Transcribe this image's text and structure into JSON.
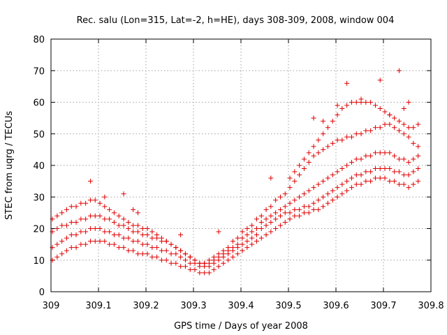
{
  "chart_data": {
    "type": "scatter",
    "title": "Rec. salu (Lon=315, Lat=-2, h=HE), days 308-309, 2008, window 004",
    "xlabel": "GPS time / Days of year 2008",
    "ylabel": "STEC from uqrg / TECUs",
    "xlim": [
      309,
      309.8
    ],
    "ylim": [
      0,
      80
    ],
    "xticks": [
      "309",
      "309.1",
      "309.2",
      "309.3",
      "309.4",
      "309.5",
      "309.6",
      "309.7",
      "309.8"
    ],
    "yticks": [
      "0",
      "10",
      "20",
      "30",
      "40",
      "50",
      "60",
      "70",
      "80"
    ],
    "grid": true,
    "marker": "+",
    "color": "#e00000",
    "series": [
      {
        "name": "track-1",
        "x": [
          309.003,
          309.013,
          309.023,
          309.033,
          309.043,
          309.053,
          309.063,
          309.073,
          309.083,
          309.093,
          309.103,
          309.113,
          309.123,
          309.133,
          309.143,
          309.153,
          309.163,
          309.173,
          309.183,
          309.193,
          309.203,
          309.213,
          309.223,
          309.233,
          309.243,
          309.253,
          309.263,
          309.273,
          309.283,
          309.293,
          309.303,
          309.313,
          309.323,
          309.333,
          309.343,
          309.353,
          309.363,
          309.373,
          309.383,
          309.393,
          309.403,
          309.413,
          309.423,
          309.433,
          309.443,
          309.453,
          309.463,
          309.473,
          309.483,
          309.493,
          309.503,
          309.513,
          309.523,
          309.533,
          309.543,
          309.553,
          309.563,
          309.573,
          309.583,
          309.593,
          309.603,
          309.613,
          309.623,
          309.633,
          309.643,
          309.653,
          309.663,
          309.673,
          309.683,
          309.693,
          309.703,
          309.713,
          309.723,
          309.733,
          309.743,
          309.753,
          309.763,
          309.773
        ],
        "y": [
          10,
          11,
          12,
          13,
          14,
          14,
          15,
          15,
          16,
          16,
          16,
          16,
          15,
          15,
          14,
          14,
          13,
          13,
          12,
          12,
          12,
          11,
          11,
          10,
          10,
          9,
          9,
          8,
          8,
          7,
          7,
          6,
          6,
          6,
          7,
          8,
          9,
          10,
          11,
          12,
          13,
          14,
          15,
          16,
          17,
          18,
          19,
          20,
          21,
          22,
          23,
          24,
          24,
          25,
          25,
          26,
          26,
          27,
          28,
          29,
          30,
          31,
          32,
          33,
          34,
          34,
          35,
          35,
          36,
          36,
          36,
          35,
          35,
          34,
          34,
          33,
          34,
          35
        ]
      },
      {
        "name": "track-2",
        "x": [
          309.003,
          309.013,
          309.023,
          309.033,
          309.043,
          309.053,
          309.063,
          309.073,
          309.083,
          309.093,
          309.103,
          309.113,
          309.123,
          309.133,
          309.143,
          309.153,
          309.163,
          309.173,
          309.183,
          309.193,
          309.203,
          309.213,
          309.223,
          309.233,
          309.243,
          309.253,
          309.263,
          309.273,
          309.283,
          309.293,
          309.303,
          309.313,
          309.323,
          309.333,
          309.343,
          309.353,
          309.363,
          309.373,
          309.383,
          309.393,
          309.403,
          309.413,
          309.423,
          309.433,
          309.443,
          309.453,
          309.463,
          309.473,
          309.483,
          309.493,
          309.503,
          309.513,
          309.523,
          309.533,
          309.543,
          309.553,
          309.563,
          309.573,
          309.583,
          309.593,
          309.603,
          309.613,
          309.623,
          309.633,
          309.643,
          309.653,
          309.663,
          309.673,
          309.683,
          309.693,
          309.703,
          309.713,
          309.723,
          309.733,
          309.743,
          309.753,
          309.763,
          309.773
        ],
        "y": [
          14,
          15,
          16,
          17,
          18,
          18,
          19,
          19,
          20,
          20,
          20,
          19,
          19,
          18,
          18,
          17,
          17,
          16,
          16,
          15,
          15,
          14,
          14,
          13,
          13,
          12,
          12,
          11,
          10,
          9,
          9,
          8,
          8,
          8,
          9,
          10,
          11,
          12,
          13,
          14,
          15,
          16,
          17,
          18,
          20,
          21,
          22,
          23,
          24,
          25,
          25,
          26,
          26,
          27,
          27,
          28,
          29,
          30,
          31,
          32,
          33,
          34,
          35,
          36,
          37,
          37,
          38,
          38,
          39,
          39,
          39,
          39,
          38,
          38,
          37,
          37,
          38,
          39
        ]
      },
      {
        "name": "track-3",
        "x": [
          309.003,
          309.013,
          309.023,
          309.033,
          309.043,
          309.053,
          309.063,
          309.073,
          309.083,
          309.093,
          309.103,
          309.113,
          309.123,
          309.133,
          309.143,
          309.153,
          309.163,
          309.173,
          309.183,
          309.193,
          309.203,
          309.213,
          309.223,
          309.233,
          309.243,
          309.253,
          309.263,
          309.273,
          309.283,
          309.293,
          309.303,
          309.313,
          309.323,
          309.333,
          309.343,
          309.353,
          309.363,
          309.373,
          309.383,
          309.393,
          309.403,
          309.413,
          309.423,
          309.433,
          309.443,
          309.453,
          309.463,
          309.473,
          309.483,
          309.493,
          309.503,
          309.513,
          309.523,
          309.533,
          309.543,
          309.553,
          309.563,
          309.573,
          309.583,
          309.593,
          309.603,
          309.613,
          309.623,
          309.633,
          309.643,
          309.653,
          309.663,
          309.673,
          309.683,
          309.693,
          309.703,
          309.713,
          309.723,
          309.733,
          309.743,
          309.753,
          309.763,
          309.773
        ],
        "y": [
          19,
          20,
          21,
          21,
          22,
          22,
          23,
          23,
          24,
          24,
          24,
          23,
          23,
          22,
          21,
          21,
          20,
          19,
          19,
          18,
          18,
          17,
          17,
          16,
          16,
          15,
          14,
          13,
          12,
          11,
          10,
          9,
          9,
          9,
          10,
          11,
          12,
          13,
          14,
          15,
          17,
          18,
          19,
          20,
          22,
          23,
          24,
          25,
          26,
          27,
          28,
          29,
          30,
          31,
          32,
          33,
          34,
          35,
          36,
          37,
          38,
          39,
          40,
          41,
          42,
          42,
          43,
          43,
          44,
          44,
          44,
          44,
          43,
          42,
          42,
          41,
          42,
          43
        ]
      },
      {
        "name": "track-4",
        "x": [
          309.003,
          309.013,
          309.023,
          309.033,
          309.043,
          309.053,
          309.063,
          309.073,
          309.083,
          309.093,
          309.103,
          309.113,
          309.123,
          309.133,
          309.143,
          309.153,
          309.163,
          309.173,
          309.183,
          309.193,
          309.203,
          309.213,
          309.223,
          309.233,
          309.243,
          309.253,
          309.263,
          309.273,
          309.283,
          309.293,
          309.303,
          309.313,
          309.323,
          309.333,
          309.343,
          309.353,
          309.363,
          309.373,
          309.383,
          309.393,
          309.403,
          309.413,
          309.423,
          309.433,
          309.443,
          309.453,
          309.463,
          309.473,
          309.483,
          309.493,
          309.503,
          309.513,
          309.523,
          309.533,
          309.543,
          309.553,
          309.563,
          309.573,
          309.583,
          309.593,
          309.603,
          309.613,
          309.623,
          309.633,
          309.643,
          309.653,
          309.663,
          309.673,
          309.683,
          309.693,
          309.703,
          309.713,
          309.723,
          309.733,
          309.743,
          309.753,
          309.763,
          309.773
        ],
        "y": [
          23,
          24,
          25,
          26,
          27,
          27,
          28,
          28,
          29,
          29,
          28,
          27,
          26,
          25,
          24,
          23,
          22,
          21,
          21,
          20,
          20,
          19,
          18,
          17,
          16,
          15,
          14,
          13,
          12,
          11,
          10,
          9,
          9,
          10,
          11,
          12,
          13,
          14,
          16,
          17,
          19,
          20,
          21,
          23,
          24,
          26,
          27,
          29,
          30,
          31,
          33,
          35,
          37,
          39,
          41,
          43,
          44,
          45,
          46,
          47,
          48,
          48,
          49,
          49,
          50,
          50,
          51,
          51,
          52,
          52,
          53,
          53,
          52,
          51,
          50,
          49,
          47,
          46
        ]
      },
      {
        "name": "track-5",
        "x": [
          309.503,
          309.513,
          309.523,
          309.533,
          309.543,
          309.553,
          309.563,
          309.573,
          309.583,
          309.593,
          309.603,
          309.613,
          309.623,
          309.633,
          309.643,
          309.653,
          309.663,
          309.673,
          309.683,
          309.693,
          309.703,
          309.713,
          309.723,
          309.733,
          309.743,
          309.753,
          309.763,
          309.773
        ],
        "y": [
          36,
          38,
          40,
          42,
          44,
          46,
          48,
          50,
          52,
          54,
          56,
          58,
          59,
          60,
          60,
          60,
          60,
          60,
          59,
          58,
          57,
          56,
          55,
          54,
          53,
          52,
          52,
          53
        ]
      },
      {
        "name": "outliers",
        "x": [
          309.083,
          309.113,
          309.153,
          309.173,
          309.183,
          309.273,
          309.353,
          309.463,
          309.553,
          309.573,
          309.603,
          309.623,
          309.653,
          309.693,
          309.713,
          309.733,
          309.743,
          309.753
        ],
        "y": [
          35,
          30,
          31,
          26,
          25,
          18,
          19,
          36,
          55,
          54,
          59,
          66,
          61,
          67,
          56,
          70,
          58,
          60
        ]
      }
    ]
  }
}
